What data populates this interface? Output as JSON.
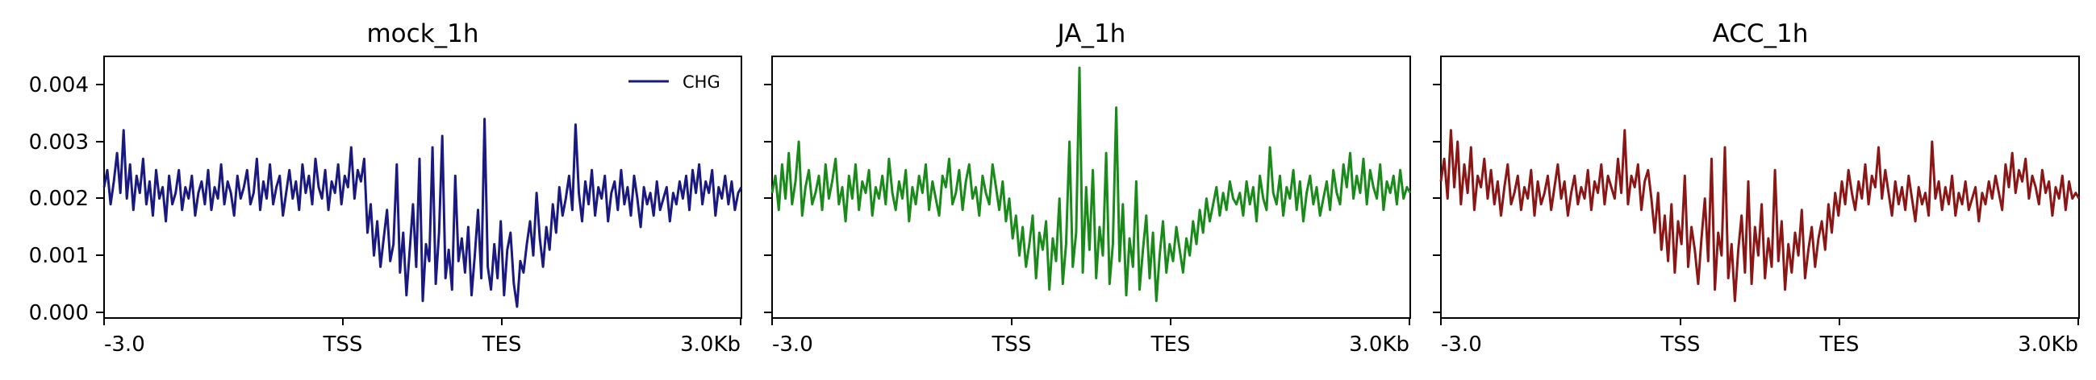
{
  "chart_data": [
    {
      "type": "line",
      "title": "mock_1h",
      "xlabel": "",
      "ylabel": "",
      "x_ticks": [
        "-3.0",
        "TSS",
        "TES",
        "3.0Kb"
      ],
      "y_ticks": [
        "0.000",
        "0.001",
        "0.002",
        "0.003",
        "0.004"
      ],
      "ylim": [
        -0.0001,
        0.0045
      ],
      "legend": {
        "position": "top-right",
        "entries": [
          "CHG"
        ]
      },
      "grid": false,
      "series": [
        {
          "name": "CHG",
          "color": "#191980",
          "values": [
            0.0022,
            0.0025,
            0.0019,
            0.0023,
            0.0028,
            0.0021,
            0.0032,
            0.002,
            0.0026,
            0.0018,
            0.0024,
            0.0021,
            0.0027,
            0.0019,
            0.0023,
            0.0017,
            0.0025,
            0.002,
            0.0022,
            0.0016,
            0.0024,
            0.0019,
            0.0021,
            0.0025,
            0.0018,
            0.0022,
            0.002,
            0.0024,
            0.0017,
            0.0021,
            0.0023,
            0.0019,
            0.0025,
            0.0018,
            0.0022,
            0.002,
            0.0026,
            0.0019,
            0.0023,
            0.0021,
            0.0017,
            0.0024,
            0.002,
            0.0022,
            0.0025,
            0.0019,
            0.0021,
            0.0027,
            0.0018,
            0.0023,
            0.002,
            0.0026,
            0.0019,
            0.0022,
            0.0024,
            0.0017,
            0.0021,
            0.0025,
            0.002,
            0.0023,
            0.0018,
            0.0026,
            0.0021,
            0.0024,
            0.0019,
            0.0027,
            0.0022,
            0.002,
            0.0025,
            0.0018,
            0.0023,
            0.0021,
            0.0026,
            0.0019,
            0.0024,
            0.0022,
            0.0029,
            0.002,
            0.0025,
            0.0023,
            0.0027,
            0.0014,
            0.0019,
            0.001,
            0.0016,
            0.0008,
            0.0013,
            0.0018,
            0.0009,
            0.0012,
            0.0026,
            0.0007,
            0.0014,
            0.0003,
            0.0011,
            0.0019,
            0.0008,
            0.0027,
            0.0002,
            0.0012,
            0.0009,
            0.0029,
            0.0005,
            0.0014,
            0.0031,
            0.0006,
            0.0011,
            0.0004,
            0.0024,
            0.0009,
            0.0013,
            0.0007,
            0.0015,
            0.0003,
            0.001,
            0.0018,
            0.0006,
            0.0034,
            0.0008,
            0.0004,
            0.0012,
            0.0006,
            0.0016,
            0.0003,
            0.0011,
            0.0014,
            0.0005,
            0.0001,
            0.0009,
            0.0007,
            0.0012,
            0.0016,
            0.001,
            0.0021,
            0.0013,
            0.0008,
            0.0015,
            0.0011,
            0.0019,
            0.0014,
            0.0022,
            0.0017,
            0.002,
            0.0024,
            0.0018,
            0.0033,
            0.0021,
            0.0016,
            0.0023,
            0.0019,
            0.0025,
            0.0017,
            0.0022,
            0.002,
            0.0024,
            0.0016,
            0.0021,
            0.0023,
            0.0018,
            0.0025,
            0.0019,
            0.0022,
            0.0017,
            0.0024,
            0.002,
            0.0015,
            0.0022,
            0.0019,
            0.0021,
            0.0017,
            0.0023,
            0.0018,
            0.002,
            0.0022,
            0.0016,
            0.0021,
            0.0019,
            0.0023,
            0.002,
            0.0024,
            0.0018,
            0.0025,
            0.0021,
            0.0026,
            0.0019,
            0.0023,
            0.0021,
            0.0025,
            0.0017,
            0.0022,
            0.002,
            0.0024,
            0.0019,
            0.0023,
            0.0018,
            0.0021,
            0.0022
          ]
        }
      ]
    },
    {
      "type": "line",
      "title": "JA_1h",
      "xlabel": "",
      "ylabel": "",
      "x_ticks": [
        "-3.0",
        "TSS",
        "TES",
        "3.0Kb"
      ],
      "ylim": [
        -0.0001,
        0.0045
      ],
      "grid": false,
      "series": [
        {
          "name": "",
          "color": "#1a8a1a",
          "values": [
            0.0021,
            0.0024,
            0.0018,
            0.0026,
            0.002,
            0.0028,
            0.0019,
            0.0023,
            0.003,
            0.0017,
            0.0022,
            0.0025,
            0.0019,
            0.0021,
            0.0024,
            0.0018,
            0.0026,
            0.002,
            0.0023,
            0.0027,
            0.0019,
            0.0022,
            0.0016,
            0.0024,
            0.002,
            0.0026,
            0.0018,
            0.0023,
            0.0021,
            0.0025,
            0.0017,
            0.0022,
            0.002,
            0.0024,
            0.0019,
            0.0027,
            0.0021,
            0.0018,
            0.0023,
            0.002,
            0.0025,
            0.0016,
            0.0022,
            0.0019,
            0.0024,
            0.0021,
            0.0026,
            0.0018,
            0.0023,
            0.002,
            0.0017,
            0.0024,
            0.0022,
            0.0027,
            0.0019,
            0.0021,
            0.0025,
            0.0018,
            0.0023,
            0.0026,
            0.002,
            0.0022,
            0.0017,
            0.0024,
            0.0021,
            0.0019,
            0.0026,
            0.0022,
            0.0018,
            0.0023,
            0.0016,
            0.002,
            0.0013,
            0.0017,
            0.001,
            0.0015,
            0.0008,
            0.0012,
            0.0017,
            0.0006,
            0.0014,
            0.0011,
            0.0016,
            0.0004,
            0.0013,
            0.0009,
            0.002,
            0.0005,
            0.0012,
            0.003,
            0.0008,
            0.0014,
            0.0043,
            0.0007,
            0.0022,
            0.0011,
            0.0025,
            0.0006,
            0.0015,
            0.001,
            0.0028,
            0.0005,
            0.0012,
            0.0036,
            0.0009,
            0.0019,
            0.0003,
            0.0013,
            0.0008,
            0.0023,
            0.0004,
            0.0011,
            0.0017,
            0.0006,
            0.0014,
            0.0002,
            0.001,
            0.0016,
            0.0007,
            0.0012,
            0.0009,
            0.0015,
            0.0011,
            0.0007,
            0.0013,
            0.001,
            0.0016,
            0.0012,
            0.0018,
            0.0014,
            0.002,
            0.0016,
            0.0019,
            0.0022,
            0.0017,
            0.0021,
            0.0018,
            0.0023,
            0.002,
            0.0019,
            0.0021,
            0.0017,
            0.0023,
            0.0019,
            0.0022,
            0.0016,
            0.0024,
            0.002,
            0.0018,
            0.0029,
            0.0021,
            0.0019,
            0.0024,
            0.0017,
            0.0022,
            0.002,
            0.0025,
            0.0018,
            0.0023,
            0.0016,
            0.0021,
            0.0024,
            0.0019,
            0.0022,
            0.0017,
            0.002,
            0.0023,
            0.0018,
            0.0025,
            0.0021,
            0.0019,
            0.0026,
            0.0022,
            0.0028,
            0.002,
            0.0024,
            0.0021,
            0.0027,
            0.0019,
            0.0025,
            0.0022,
            0.002,
            0.0026,
            0.0018,
            0.0023,
            0.0021,
            0.0024,
            0.0019,
            0.0025,
            0.002,
            0.0022,
            0.0021
          ]
        }
      ]
    },
    {
      "type": "line",
      "title": "ACC_1h",
      "xlabel": "",
      "ylabel": "",
      "x_ticks": [
        "-3.0",
        "TSS",
        "TES",
        "3.0Kb"
      ],
      "ylim": [
        -0.0001,
        0.0045
      ],
      "grid": false,
      "series": [
        {
          "name": "",
          "color": "#8a1616",
          "values": [
            0.0023,
            0.0027,
            0.002,
            0.0032,
            0.0022,
            0.003,
            0.0019,
            0.0026,
            0.0021,
            0.0029,
            0.0018,
            0.0024,
            0.0022,
            0.0027,
            0.002,
            0.0025,
            0.0019,
            0.0023,
            0.0017,
            0.0022,
            0.0026,
            0.0019,
            0.0021,
            0.0024,
            0.0018,
            0.0022,
            0.002,
            0.0025,
            0.0017,
            0.0023,
            0.0019,
            0.0021,
            0.0024,
            0.0018,
            0.0022,
            0.0026,
            0.002,
            0.0023,
            0.0017,
            0.0021,
            0.0024,
            0.0019,
            0.0022,
            0.002,
            0.0025,
            0.0018,
            0.0023,
            0.0021,
            0.0026,
            0.0019,
            0.0024,
            0.0022,
            0.002,
            0.0027,
            0.0021,
            0.0032,
            0.0019,
            0.0024,
            0.0022,
            0.0026,
            0.0018,
            0.0023,
            0.0025,
            0.002,
            0.0014,
            0.0021,
            0.0011,
            0.0017,
            0.0009,
            0.0019,
            0.0007,
            0.0016,
            0.0012,
            0.0024,
            0.0008,
            0.0015,
            0.0011,
            0.0005,
            0.0013,
            0.002,
            0.0009,
            0.0027,
            0.0004,
            0.0014,
            0.001,
            0.0029,
            0.0006,
            0.0012,
            0.0002,
            0.0011,
            0.0017,
            0.0007,
            0.0023,
            0.0005,
            0.0015,
            0.001,
            0.0019,
            0.0006,
            0.0013,
            0.0008,
            0.0025,
            0.0009,
            0.0016,
            0.0004,
            0.0012,
            0.0007,
            0.0014,
            0.001,
            0.0018,
            0.0006,
            0.0011,
            0.0015,
            0.0008,
            0.0013,
            0.0016,
            0.0011,
            0.0019,
            0.0014,
            0.0021,
            0.0017,
            0.0023,
            0.0019,
            0.0025,
            0.0021,
            0.0018,
            0.0023,
            0.002,
            0.0026,
            0.0019,
            0.0024,
            0.0022,
            0.0029,
            0.002,
            0.0025,
            0.0021,
            0.0017,
            0.0023,
            0.0019,
            0.0022,
            0.0018,
            0.0024,
            0.002,
            0.0016,
            0.0022,
            0.0019,
            0.0021,
            0.0017,
            0.003,
            0.002,
            0.0023,
            0.0018,
            0.0022,
            0.0019,
            0.0024,
            0.0017,
            0.0021,
            0.0019,
            0.0023,
            0.0018,
            0.002,
            0.0022,
            0.0016,
            0.0021,
            0.0019,
            0.0023,
            0.002,
            0.0024,
            0.0021,
            0.0018,
            0.0026,
            0.0022,
            0.0028,
            0.0021,
            0.0025,
            0.0023,
            0.0027,
            0.002,
            0.0024,
            0.0022,
            0.0019,
            0.0025,
            0.0021,
            0.0023,
            0.0017,
            0.0022,
            0.002,
            0.0024,
            0.0018,
            0.0023,
            0.002,
            0.0021,
            0.002
          ]
        }
      ]
    }
  ]
}
